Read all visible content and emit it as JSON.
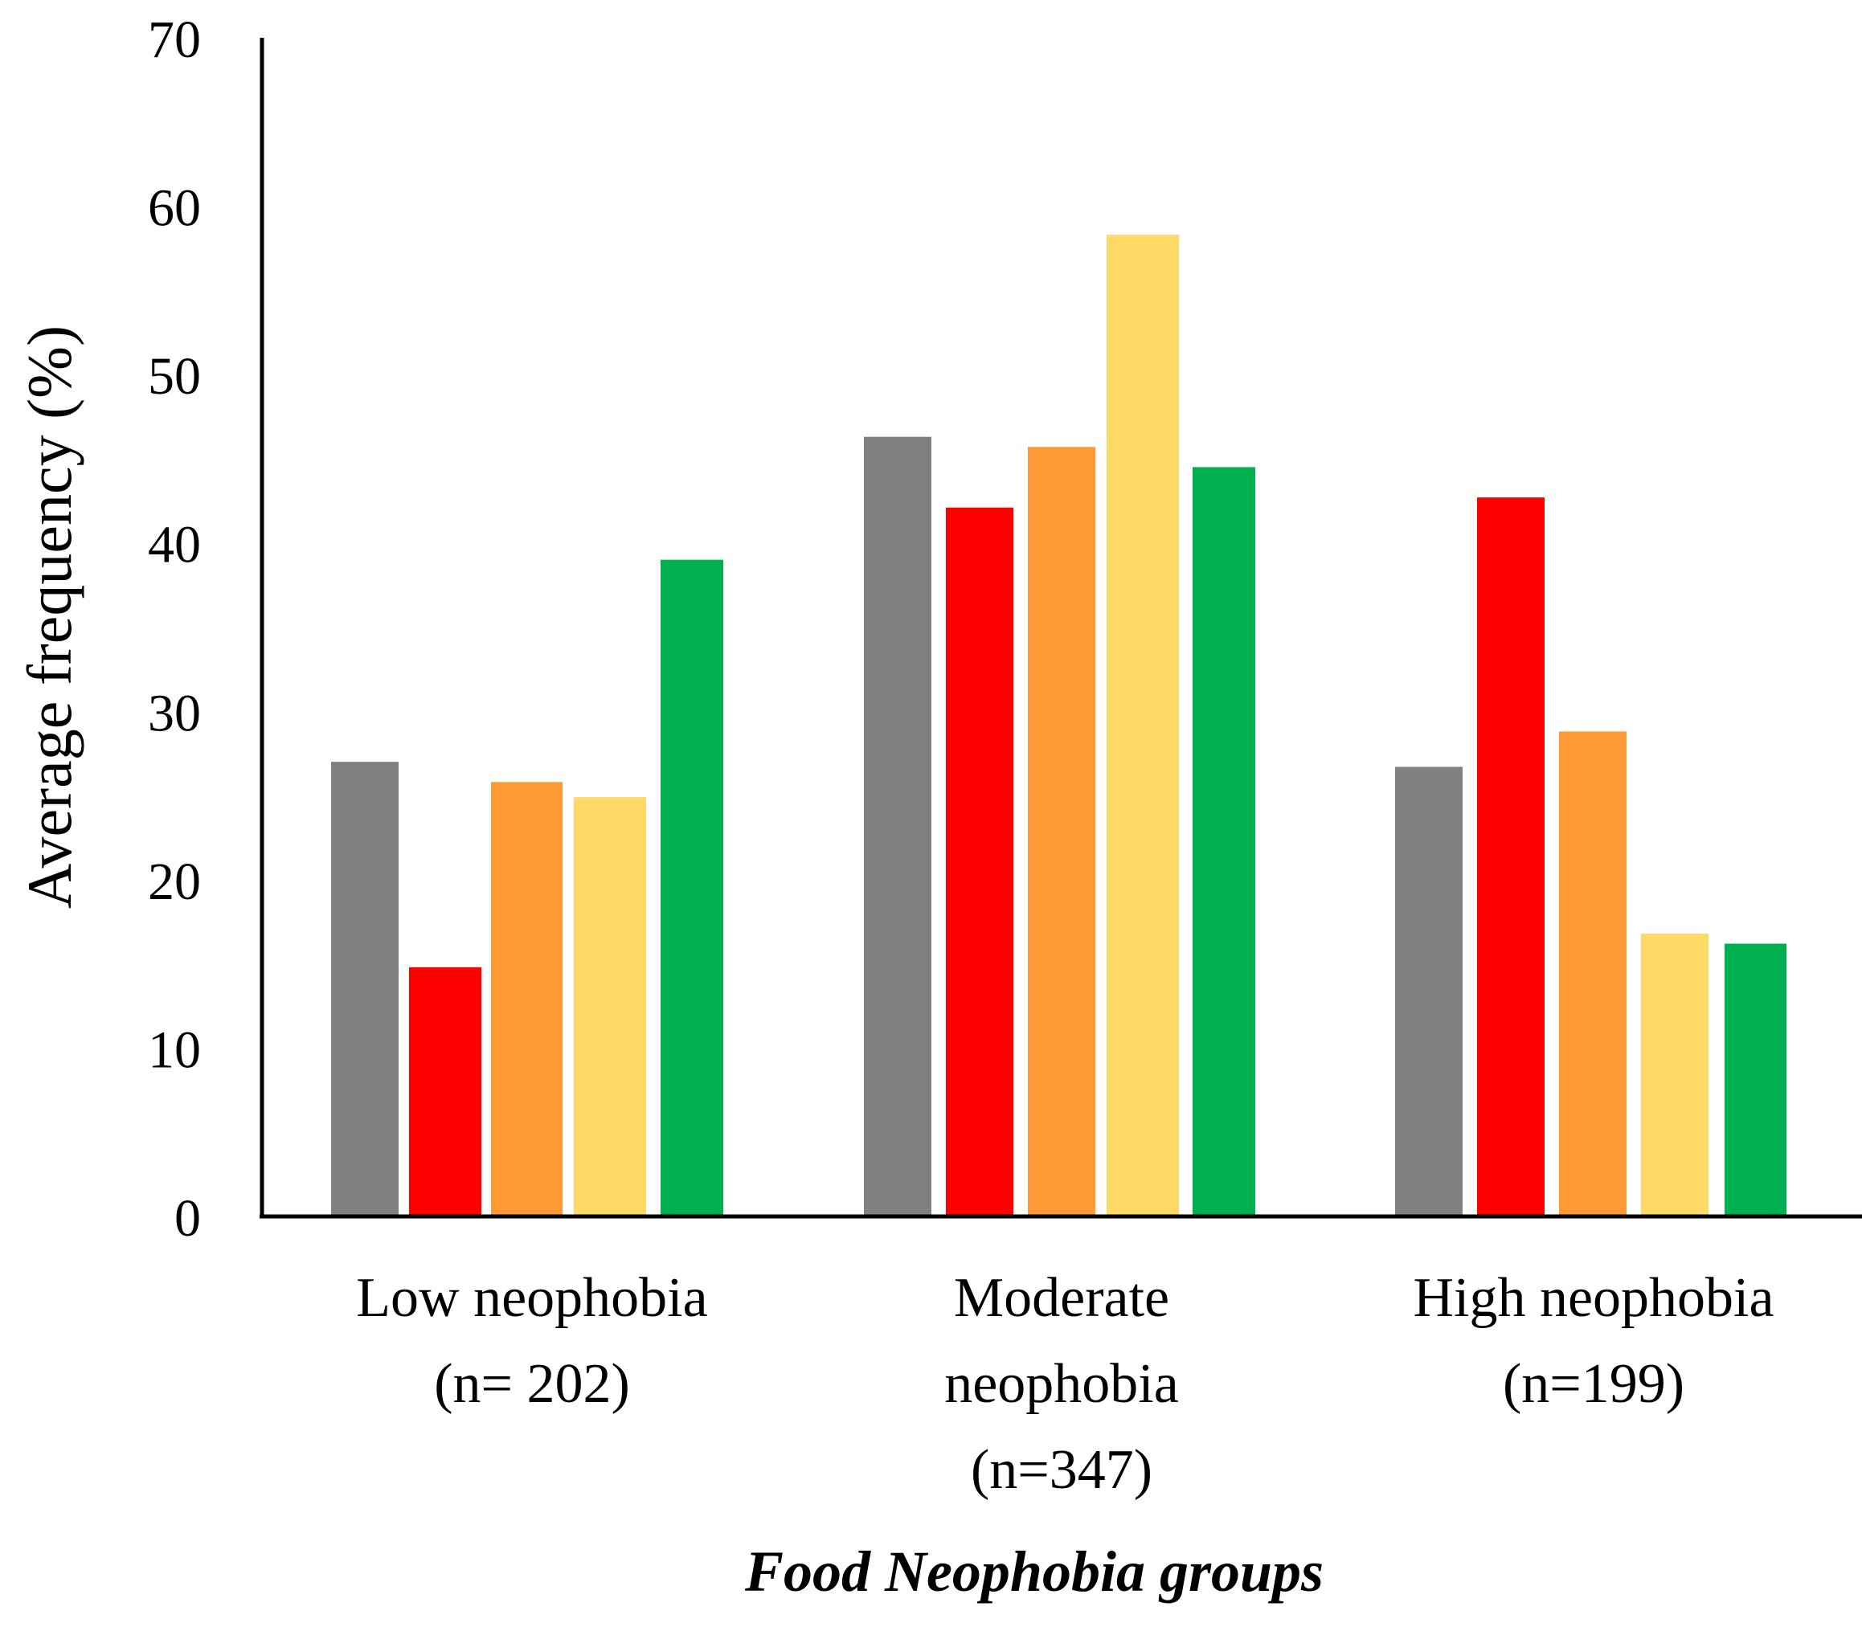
{
  "chart_data": {
    "type": "bar",
    "title": "",
    "ylabel": "Average frequency (%)",
    "xlabel": "Food Neophobia groups",
    "ylim": [
      0,
      70
    ],
    "yticks": [
      "0",
      "10",
      "20",
      "30",
      "40",
      "50",
      "60",
      "70"
    ],
    "grid": false,
    "legend": "none",
    "categories": [
      {
        "lines": [
          "Low neophobia",
          "(n= 202)"
        ]
      },
      {
        "lines": [
          "Moderate",
          "neophobia",
          "(n=347)"
        ]
      },
      {
        "lines": [
          "High neophobia",
          "(n=199)"
        ]
      }
    ],
    "series": [
      {
        "color": "#808080",
        "values": [
          27.0,
          46.3,
          26.7
        ]
      },
      {
        "color": "#ff0000",
        "values": [
          14.8,
          42.1,
          42.7
        ]
      },
      {
        "color": "#ff9933",
        "values": [
          25.8,
          45.7,
          28.8
        ]
      },
      {
        "color": "#ffd966",
        "values": [
          24.9,
          58.3,
          16.8
        ]
      },
      {
        "color": "#00b050",
        "values": [
          39.0,
          44.5,
          16.2
        ]
      }
    ]
  }
}
